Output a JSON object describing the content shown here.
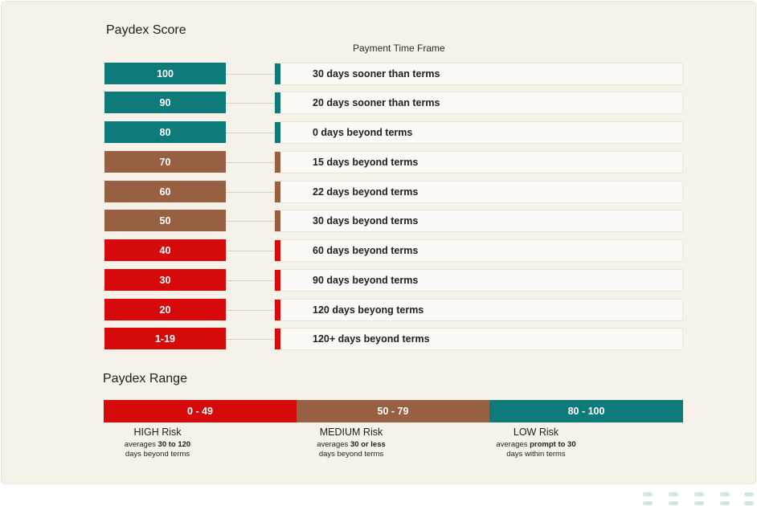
{
  "titles": {
    "score": "Paydex Score",
    "time_frame": "Payment Time Frame",
    "range": "Paydex Range"
  },
  "colors": {
    "teal": "#0f7a7a",
    "brown": "#976042",
    "red": "#d60a0a"
  },
  "rows": [
    {
      "score": "100",
      "frame": "30 days sooner than terms",
      "level": "teal"
    },
    {
      "score": "90",
      "frame": "20 days sooner than terms",
      "level": "teal"
    },
    {
      "score": "80",
      "frame": "0 days beyond terms",
      "level": "teal"
    },
    {
      "score": "70",
      "frame": "15 days beyond terms",
      "level": "brown"
    },
    {
      "score": "60",
      "frame": "22 days beyond terms",
      "level": "brown"
    },
    {
      "score": "50",
      "frame": "30 days beyond terms",
      "level": "brown"
    },
    {
      "score": "40",
      "frame": "60 days beyond terms",
      "level": "red"
    },
    {
      "score": "30",
      "frame": "90 days beyond terms",
      "level": "red"
    },
    {
      "score": "20",
      "frame": "120 days beyong terms",
      "level": "red"
    },
    {
      "score": "1-19",
      "frame": "120+ days beyond terms",
      "level": "red"
    }
  ],
  "range": [
    {
      "label": "0 - 49",
      "risk": "HIGH Risk",
      "desc_pre": "averages ",
      "desc_bold": "30 to 120",
      "desc_post": "days beyond terms",
      "level": "red"
    },
    {
      "label": "50 - 79",
      "risk": "MEDIUM Risk",
      "desc_pre": "averages ",
      "desc_bold": "30 or less",
      "desc_post": "days beyond terms",
      "level": "brown"
    },
    {
      "label": "80 - 100",
      "risk": "LOW Risk",
      "desc_pre": "averages ",
      "desc_bold": "prompt to 30",
      "desc_post": "days within terms",
      "level": "teal"
    }
  ]
}
